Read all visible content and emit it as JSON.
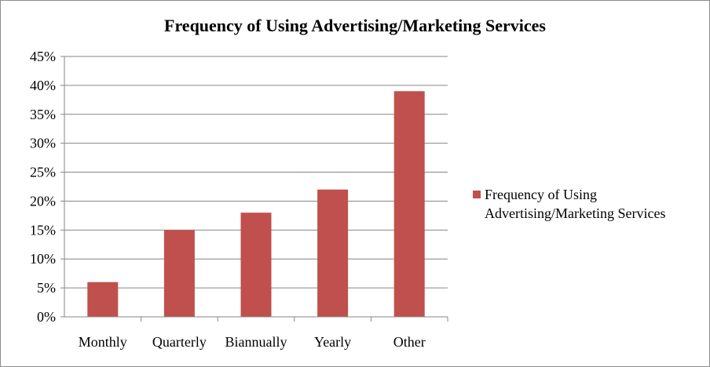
{
  "chart_data": {
    "type": "bar",
    "title": "Frequency of Using Advertising/Marketing Services",
    "categories": [
      "Monthly",
      "Quarterly",
      "Biannually",
      "Yearly",
      "Other"
    ],
    "series": [
      {
        "name": "Frequency of Using Advertising/Marketing Services",
        "values": [
          6,
          15,
          18,
          22,
          39
        ],
        "color": "#c0504d"
      }
    ],
    "y_ticks": [
      "0%",
      "5%",
      "10%",
      "15%",
      "20%",
      "25%",
      "30%",
      "35%",
      "40%",
      "45%"
    ],
    "ylim": [
      0,
      45
    ],
    "y_unit": "%",
    "grid": true,
    "legend_position": "right",
    "legend_lines": [
      "Frequency of Using",
      "Advertising/Marketing Services"
    ]
  }
}
